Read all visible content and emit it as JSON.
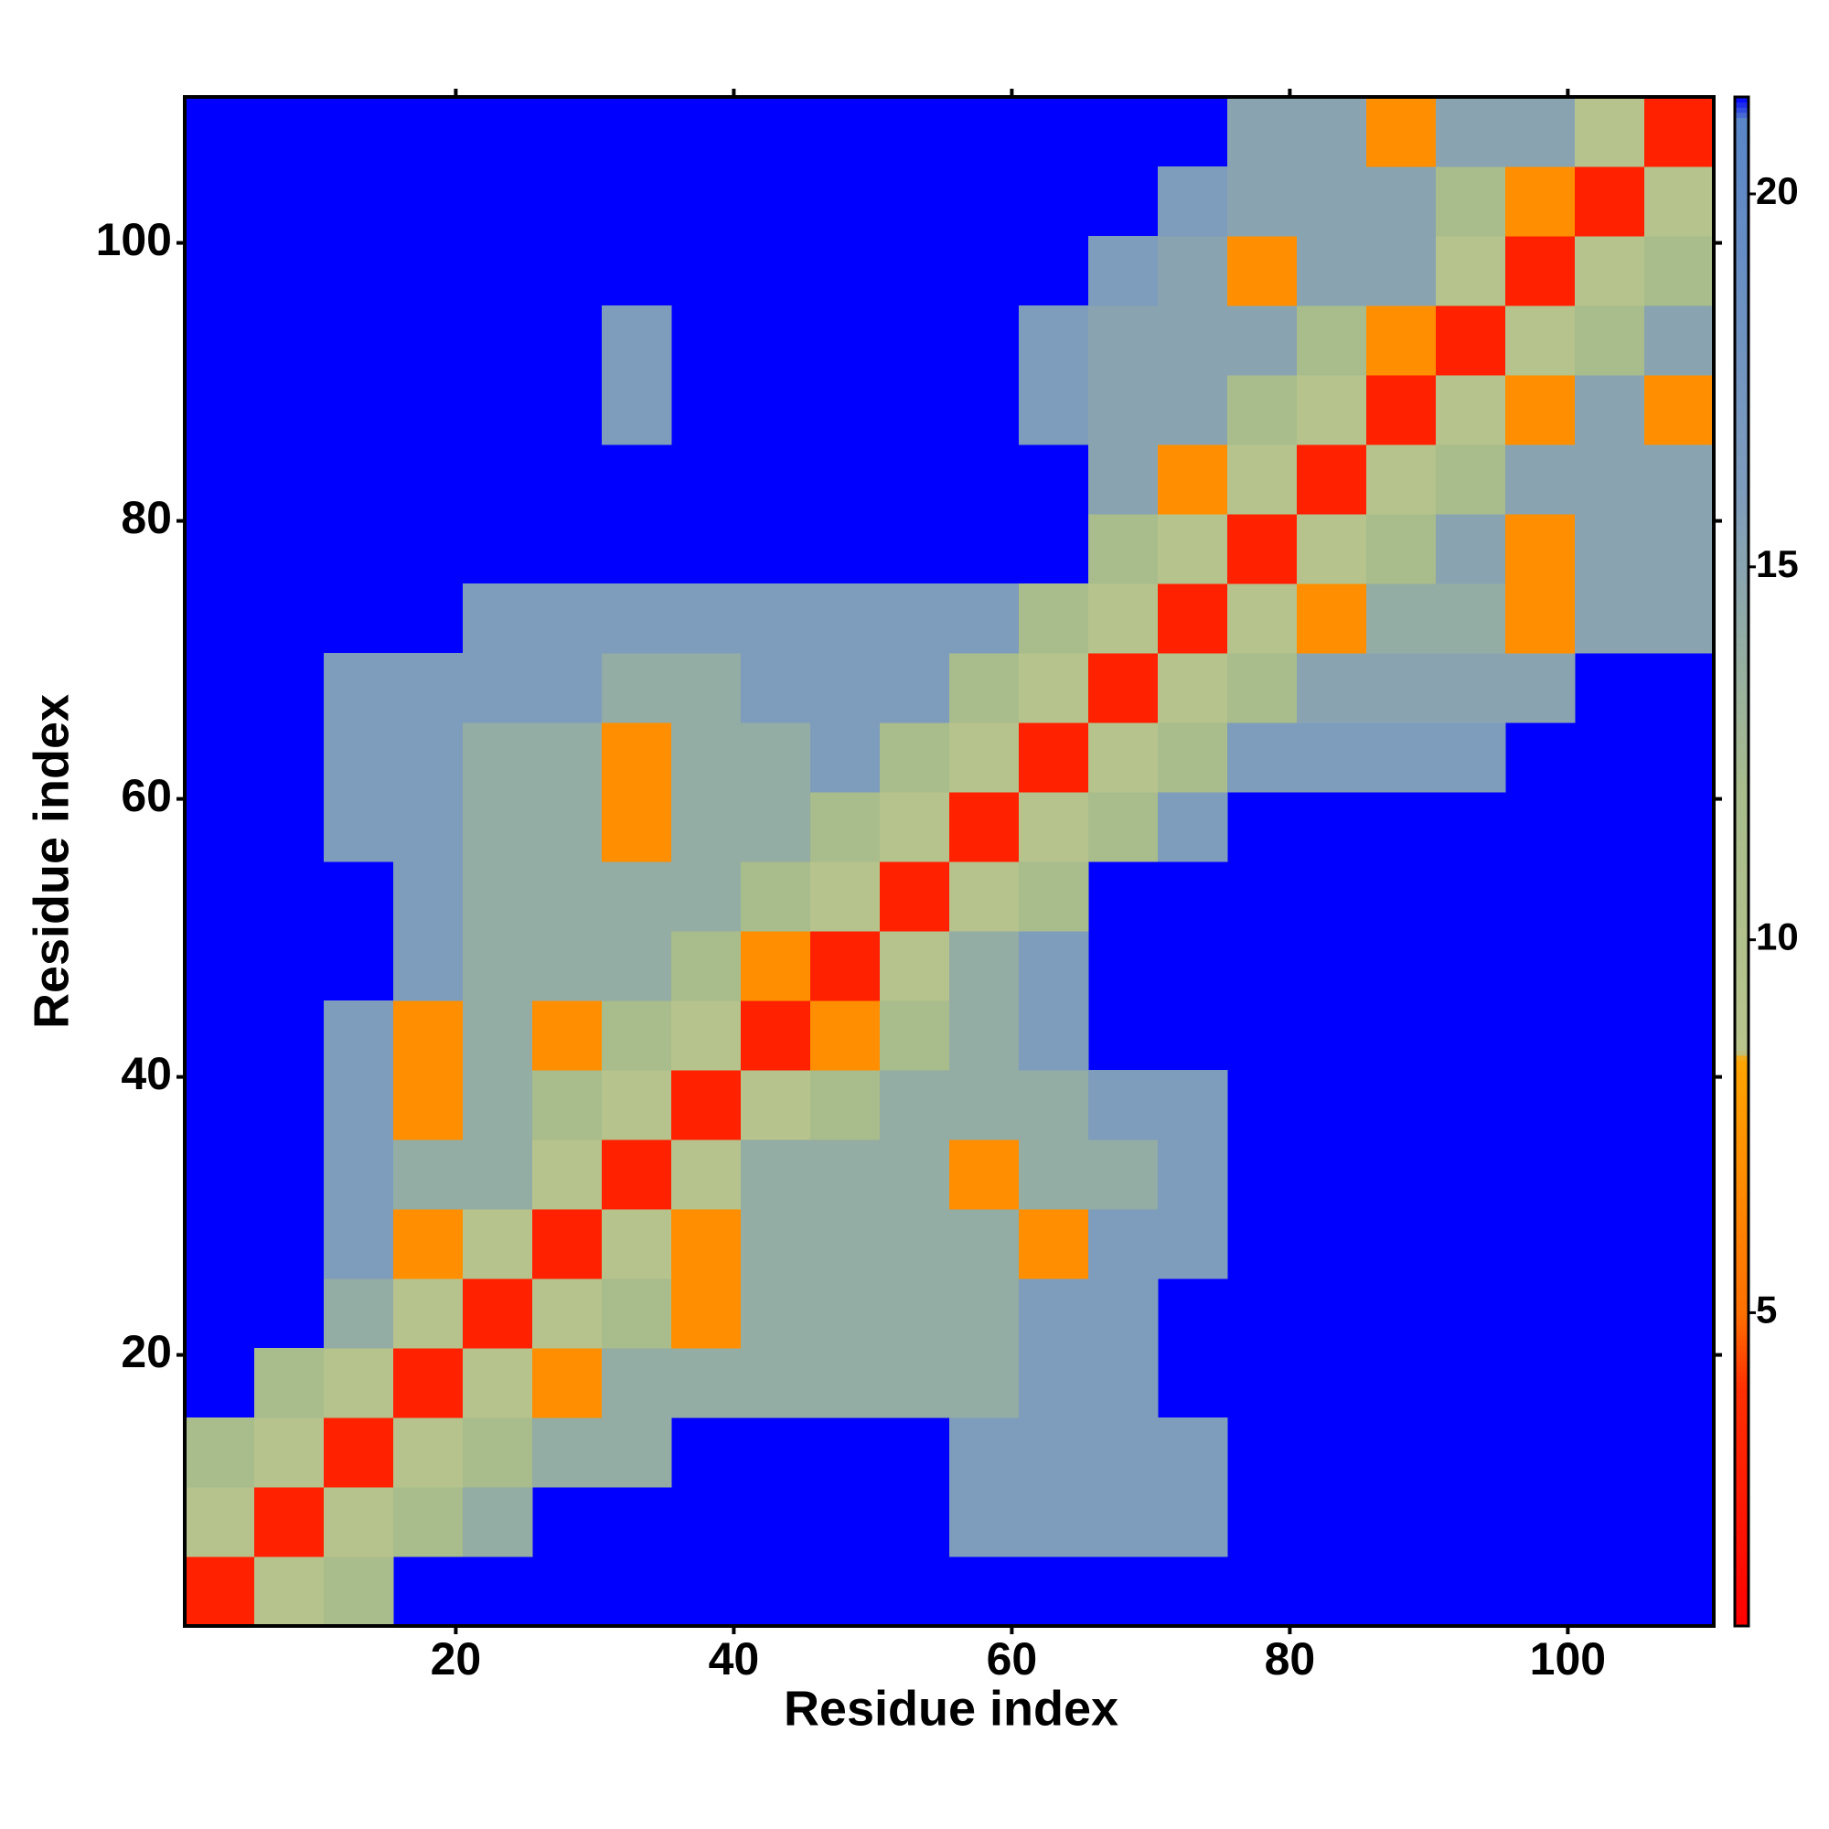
{
  "chart_data": {
    "type": "heatmap",
    "xlabel": "Residue index",
    "ylabel": "Residue index",
    "xbins": [
      0.5,
      5.5,
      10.5,
      15.5,
      20.5,
      25.5,
      30.5,
      35.5,
      40.5,
      45.5,
      50.5,
      55.5,
      60.5,
      65.5,
      70.5,
      75.5,
      80.5,
      85.5,
      90.5,
      95.5,
      100.5,
      105.5,
      110.5
    ],
    "ybins": [
      0.5,
      5.5,
      10.5,
      15.5,
      20.5,
      25.5,
      30.5,
      35.5,
      40.5,
      45.5,
      50.5,
      55.5,
      60.5,
      65.5,
      70.5,
      75.5,
      80.5,
      85.5,
      90.5,
      95.5,
      100.5,
      105.5,
      110.5
    ],
    "xlim": [
      0.5,
      110.5
    ],
    "ylim": [
      0.5,
      110.5
    ],
    "xticks": [
      20,
      40,
      60,
      80,
      100
    ],
    "yticks": [
      20,
      40,
      60,
      80,
      100
    ],
    "zlim": [
      0.8,
      21.3
    ],
    "zticks": [
      5,
      10,
      15,
      20
    ],
    "nan_color": "#0000ff",
    "colorscale": [
      [
        0.8,
        "#ff0000"
      ],
      [
        4,
        "#ff3000"
      ],
      [
        5,
        "#ff7000"
      ],
      [
        8.4,
        "#ffa500"
      ],
      [
        8.5,
        "#b8c48c"
      ],
      [
        12,
        "#a8bc8c"
      ],
      [
        16,
        "#7e9cbc"
      ],
      [
        21,
        "#5a86c8"
      ],
      [
        21.3,
        "#0000ff"
      ]
    ],
    "z": [
      [
        3,
        9,
        12,
        null,
        null,
        null,
        null,
        null,
        null,
        null,
        null,
        null,
        null,
        null,
        null,
        null,
        null,
        null,
        null,
        null,
        null,
        null
      ],
      [
        9,
        3,
        9,
        12,
        14,
        null,
        null,
        null,
        null,
        null,
        null,
        16,
        16,
        16,
        16,
        null,
        null,
        null,
        null,
        null,
        null,
        null
      ],
      [
        12,
        9,
        3,
        9,
        12,
        14,
        14,
        null,
        null,
        null,
        null,
        16,
        16,
        16,
        16,
        null,
        null,
        null,
        null,
        null,
        null,
        null
      ],
      [
        null,
        12,
        9,
        3,
        9,
        7,
        14,
        14,
        14,
        14,
        14,
        14,
        16,
        16,
        null,
        null,
        null,
        null,
        null,
        null,
        null,
        null
      ],
      [
        null,
        null,
        14,
        9,
        3,
        9,
        12,
        7,
        14,
        14,
        14,
        14,
        16,
        16,
        null,
        null,
        null,
        null,
        null,
        null,
        null,
        null
      ],
      [
        null,
        null,
        16,
        7,
        9,
        3,
        9,
        7,
        14,
        14,
        14,
        14,
        7,
        16,
        16,
        null,
        null,
        null,
        null,
        null,
        null,
        null
      ],
      [
        null,
        null,
        16,
        14,
        14,
        9,
        3,
        9,
        14,
        14,
        14,
        7,
        14,
        14,
        16,
        null,
        null,
        null,
        null,
        null,
        null,
        null
      ],
      [
        null,
        null,
        16,
        7,
        14,
        12,
        9,
        3,
        9,
        12,
        14,
        14,
        14,
        16,
        16,
        null,
        null,
        null,
        null,
        null,
        null,
        null
      ],
      [
        null,
        null,
        16,
        7,
        14,
        7,
        12,
        9,
        3,
        7,
        12,
        14,
        16,
        null,
        null,
        null,
        null,
        null,
        null,
        null,
        null,
        null
      ],
      [
        null,
        null,
        null,
        16,
        14,
        14,
        14,
        12,
        7,
        3,
        9,
        14,
        16,
        null,
        null,
        null,
        null,
        null,
        null,
        null,
        null,
        null
      ],
      [
        null,
        null,
        null,
        16,
        14,
        14,
        14,
        14,
        12,
        9,
        3,
        9,
        12,
        null,
        null,
        null,
        null,
        null,
        null,
        null,
        null,
        null
      ],
      [
        null,
        null,
        16,
        16,
        14,
        14,
        7,
        14,
        14,
        12,
        9,
        3,
        9,
        12,
        16,
        null,
        null,
        null,
        null,
        null,
        null,
        null
      ],
      [
        null,
        null,
        16,
        16,
        14,
        14,
        7,
        14,
        14,
        16,
        12,
        9,
        3,
        9,
        12,
        16,
        16,
        16,
        16,
        null,
        null,
        null
      ],
      [
        null,
        null,
        16,
        16,
        16,
        16,
        14,
        14,
        16,
        16,
        16,
        12,
        9,
        3,
        9,
        12,
        15,
        15,
        15,
        15,
        null,
        null
      ],
      [
        null,
        null,
        null,
        null,
        16,
        16,
        16,
        16,
        16,
        16,
        16,
        16,
        12,
        9,
        3,
        9,
        7,
        14,
        14,
        7,
        15,
        15
      ],
      [
        null,
        null,
        null,
        null,
        null,
        null,
        null,
        null,
        null,
        null,
        null,
        null,
        null,
        12,
        9,
        3,
        9,
        12,
        15,
        7,
        15,
        15
      ],
      [
        null,
        null,
        null,
        null,
        null,
        null,
        null,
        null,
        null,
        null,
        null,
        null,
        null,
        15,
        7,
        9,
        3,
        9,
        12,
        15,
        15,
        15
      ],
      [
        null,
        null,
        null,
        null,
        null,
        null,
        16,
        null,
        null,
        null,
        null,
        null,
        16,
        15,
        15,
        12,
        9,
        3,
        9,
        7,
        15,
        7
      ],
      [
        null,
        null,
        null,
        null,
        null,
        null,
        16,
        null,
        null,
        null,
        null,
        null,
        16,
        15,
        15,
        15,
        12,
        7,
        3,
        9,
        12,
        15
      ],
      [
        null,
        null,
        null,
        null,
        null,
        null,
        null,
        null,
        null,
        null,
        null,
        null,
        null,
        16,
        15,
        7,
        15,
        15,
        9,
        3,
        9,
        12
      ],
      [
        null,
        null,
        null,
        null,
        null,
        null,
        null,
        null,
        null,
        null,
        null,
        null,
        null,
        null,
        16,
        15,
        15,
        15,
        12,
        7,
        3,
        9
      ],
      [
        null,
        null,
        null,
        null,
        null,
        null,
        null,
        null,
        null,
        null,
        null,
        null,
        null,
        null,
        null,
        15,
        15,
        7,
        15,
        15,
        9,
        3
      ]
    ]
  }
}
